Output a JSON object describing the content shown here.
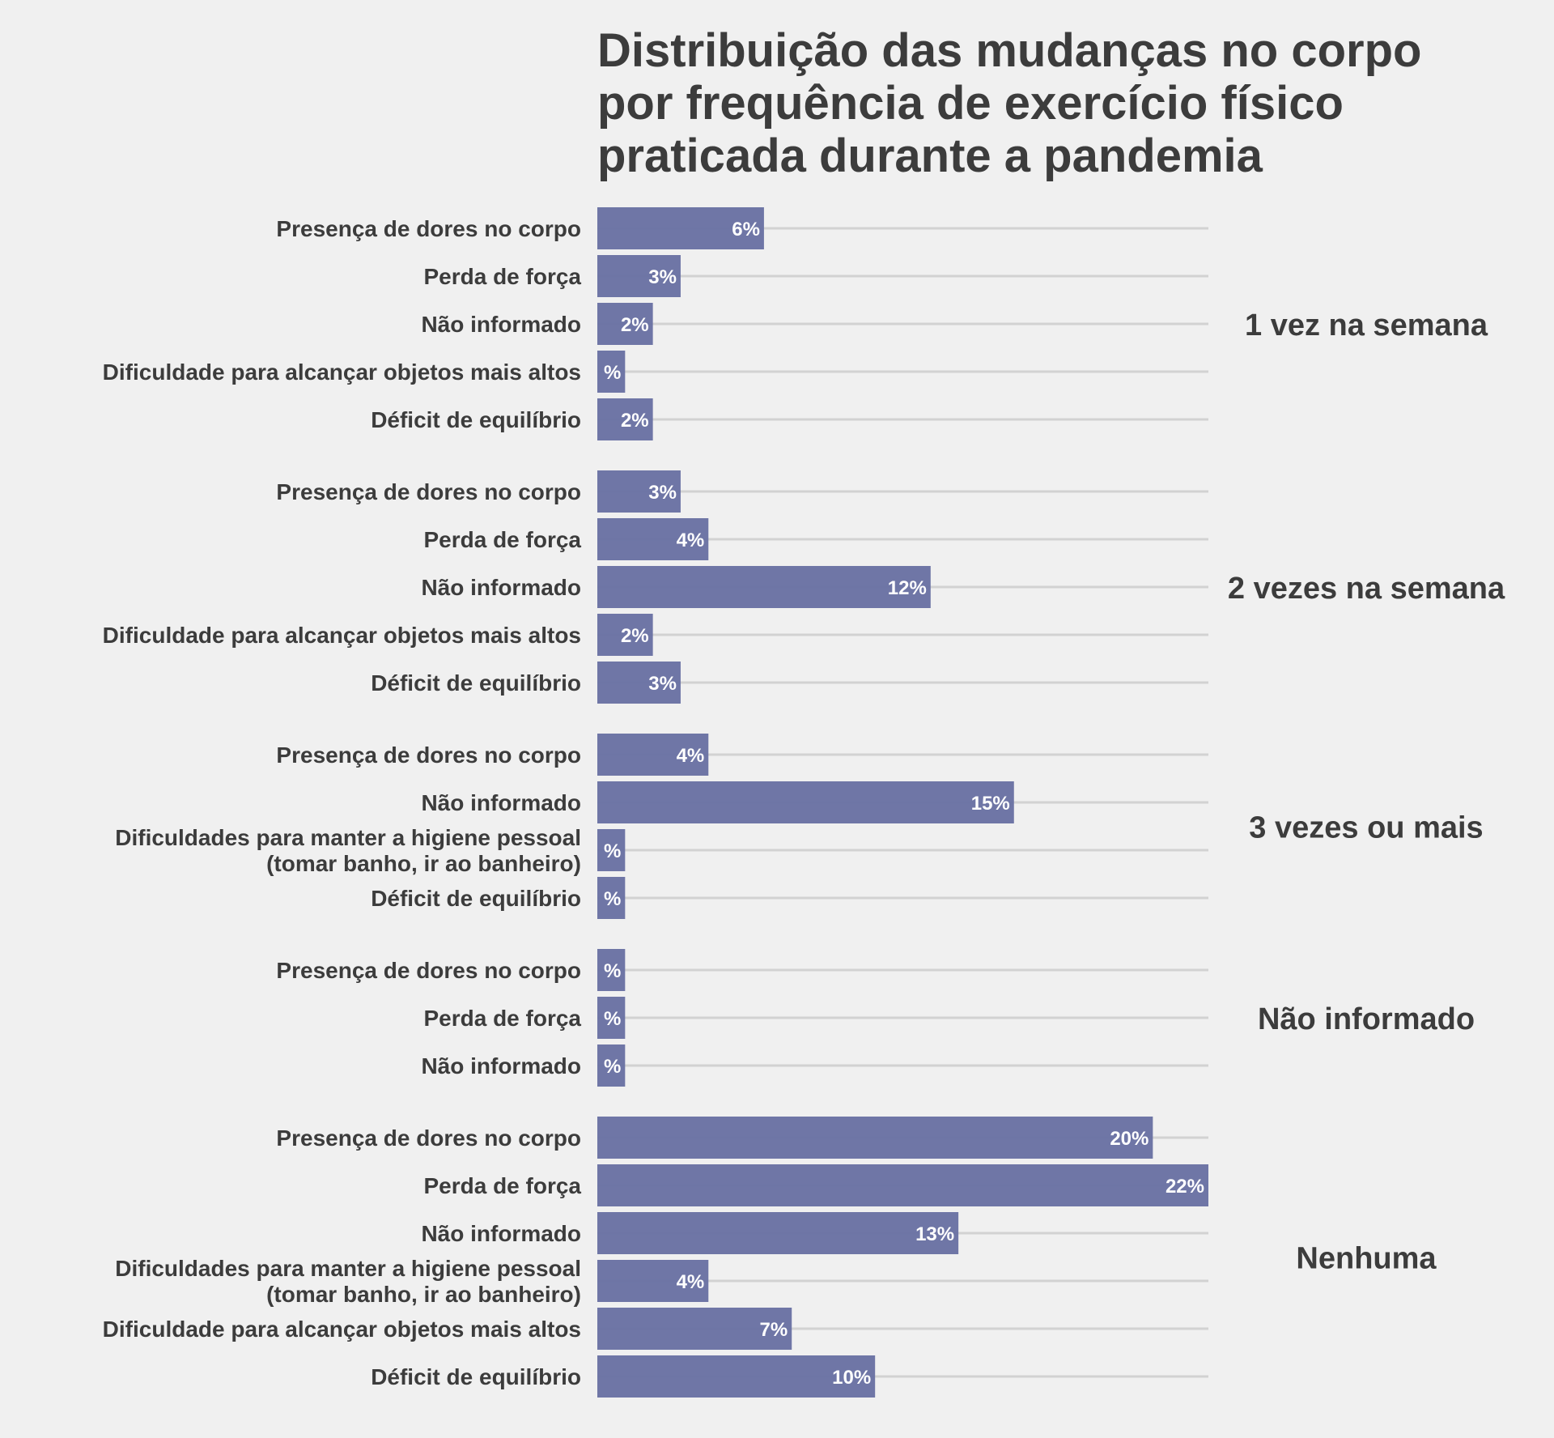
{
  "chart_data": {
    "type": "bar",
    "orientation": "horizontal",
    "title": [
      "Distribuição das mudanças no corpo",
      "por frequência de exercício físico",
      "praticada durante a pandemia"
    ],
    "value_suffix": "%",
    "bar_color": "#6a72a3",
    "grid_color": "#d2d2d2",
    "xlim": [
      0,
      22
    ],
    "grid": true,
    "groups": [
      {
        "name": "1 vez na semana",
        "bars": [
          {
            "category": [
              "Presença de dores no corpo"
            ],
            "value": 6,
            "label": "6%"
          },
          {
            "category": [
              "Perda de força"
            ],
            "value": 3,
            "label": "3%"
          },
          {
            "category": [
              "Não informado"
            ],
            "value": 2,
            "label": "2%"
          },
          {
            "category": [
              "Dificuldade para alcançar objetos mais altos"
            ],
            "value": 1,
            "label": "%"
          },
          {
            "category": [
              "Déficit de equilíbrio"
            ],
            "value": 2,
            "label": "2%"
          }
        ]
      },
      {
        "name": "2 vezes na semana",
        "bars": [
          {
            "category": [
              "Presença de dores no corpo"
            ],
            "value": 3,
            "label": "3%"
          },
          {
            "category": [
              "Perda de força"
            ],
            "value": 4,
            "label": "4%"
          },
          {
            "category": [
              "Não informado"
            ],
            "value": 12,
            "label": "12%"
          },
          {
            "category": [
              "Dificuldade para alcançar objetos mais altos"
            ],
            "value": 2,
            "label": "2%"
          },
          {
            "category": [
              "Déficit de equilíbrio"
            ],
            "value": 3,
            "label": "3%"
          }
        ]
      },
      {
        "name": "3 vezes ou mais",
        "bars": [
          {
            "category": [
              "Presença de dores no corpo"
            ],
            "value": 4,
            "label": "4%"
          },
          {
            "category": [
              "Não informado"
            ],
            "value": 15,
            "label": "15%"
          },
          {
            "category": [
              "Dificuldades para manter a higiene pessoal",
              "(tomar banho, ir ao banheiro)"
            ],
            "value": 1,
            "label": "%"
          },
          {
            "category": [
              "Déficit de equilíbrio"
            ],
            "value": 1,
            "label": "%"
          }
        ]
      },
      {
        "name": "Não informado",
        "bars": [
          {
            "category": [
              "Presença de dores no corpo"
            ],
            "value": 1,
            "label": "%"
          },
          {
            "category": [
              "Perda de força"
            ],
            "value": 1,
            "label": "%"
          },
          {
            "category": [
              "Não informado"
            ],
            "value": 1,
            "label": "%"
          }
        ]
      },
      {
        "name": "Nenhuma",
        "bars": [
          {
            "category": [
              "Presença de dores no corpo"
            ],
            "value": 20,
            "label": "20%"
          },
          {
            "category": [
              "Perda de força"
            ],
            "value": 22,
            "label": "22%"
          },
          {
            "category": [
              "Não informado"
            ],
            "value": 13,
            "label": "13%"
          },
          {
            "category": [
              "Dificuldades para manter a higiene pessoal",
              "(tomar banho, ir ao banheiro)"
            ],
            "value": 4,
            "label": "4%"
          },
          {
            "category": [
              "Dificuldade para alcançar objetos mais altos"
            ],
            "value": 7,
            "label": "7%"
          },
          {
            "category": [
              "Déficit de equilíbrio"
            ],
            "value": 10,
            "label": "10%"
          }
        ]
      }
    ]
  }
}
